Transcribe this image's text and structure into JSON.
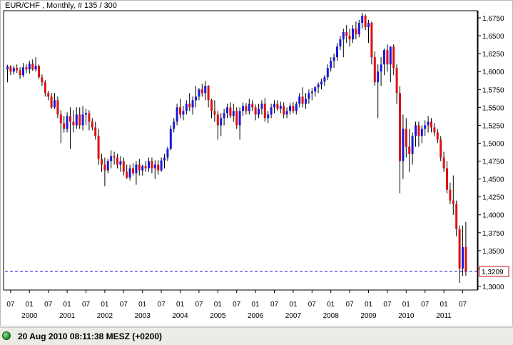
{
  "chart_data": {
    "type": "candlestick",
    "title": "EUR/CHF , Monthly, # 135 / 300",
    "y_range": [
      1.295,
      1.685
    ],
    "y_ticks": [
      "1,6750",
      "1,6500",
      "1,6250",
      "1,6000",
      "1,5750",
      "1,5500",
      "1,5250",
      "1,5000",
      "1,4750",
      "1,4500",
      "1,4250",
      "1,4000",
      "1,3750",
      "1,3500",
      "1,3250",
      "1,3000"
    ],
    "y_tick_values": [
      1.675,
      1.65,
      1.625,
      1.6,
      1.575,
      1.55,
      1.525,
      1.5,
      1.475,
      1.45,
      1.425,
      1.4,
      1.375,
      1.35,
      1.325,
      1.3
    ],
    "x_month_ticks": [
      "07",
      "01",
      "07",
      "01",
      "07",
      "01",
      "07",
      "01",
      "07",
      "01",
      "07",
      "01",
      "07",
      "01",
      "07",
      "01",
      "07",
      "01",
      "07",
      "01",
      "07",
      "01",
      "07",
      "01",
      "07"
    ],
    "x_year_labels": [
      "2000",
      "2001",
      "2002",
      "2003",
      "2004",
      "2005",
      "2006",
      "2007",
      "2008",
      "2009",
      "2010",
      "2011"
    ],
    "current_price_label": "1,3209",
    "current_price": 1.3209,
    "colors": {
      "up": "#1a1adb",
      "down": "#e01010",
      "wick": "#000000",
      "price_line": "#1a1acc",
      "price_box": "#d01010"
    },
    "series": [
      [
        1.603,
        1.6095,
        1.585,
        1.607
      ],
      [
        1.607,
        1.609,
        1.595,
        1.6
      ],
      [
        1.6,
        1.608,
        1.596,
        1.605
      ],
      [
        1.605,
        1.61,
        1.598,
        1.602
      ],
      [
        1.602,
        1.606,
        1.59,
        1.595
      ],
      [
        1.595,
        1.612,
        1.592,
        1.606
      ],
      [
        1.606,
        1.61,
        1.598,
        1.603
      ],
      [
        1.603,
        1.615,
        1.597,
        1.611
      ],
      [
        1.611,
        1.617,
        1.601,
        1.603
      ],
      [
        1.603,
        1.62,
        1.6,
        1.608
      ],
      [
        1.608,
        1.61,
        1.59,
        1.592
      ],
      [
        1.592,
        1.596,
        1.58,
        1.585
      ],
      [
        1.585,
        1.588,
        1.565,
        1.57
      ],
      [
        1.57,
        1.573,
        1.56,
        1.565
      ],
      [
        1.565,
        1.57,
        1.548,
        1.55
      ],
      [
        1.55,
        1.57,
        1.548,
        1.56
      ],
      [
        1.56,
        1.565,
        1.535,
        1.54
      ],
      [
        1.54,
        1.546,
        1.5,
        1.528
      ],
      [
        1.528,
        1.538,
        1.515,
        1.52
      ],
      [
        1.52,
        1.543,
        1.515,
        1.538
      ],
      [
        1.538,
        1.55,
        1.492,
        1.53
      ],
      [
        1.53,
        1.546,
        1.515,
        1.525
      ],
      [
        1.525,
        1.55,
        1.52,
        1.54
      ],
      [
        1.54,
        1.55,
        1.52,
        1.525
      ],
      [
        1.525,
        1.552,
        1.518,
        1.54
      ],
      [
        1.54,
        1.548,
        1.525,
        1.542
      ],
      [
        1.542,
        1.546,
        1.518,
        1.53
      ],
      [
        1.53,
        1.535,
        1.518,
        1.522
      ],
      [
        1.522,
        1.53,
        1.505,
        1.51
      ],
      [
        1.51,
        1.52,
        1.47,
        1.478
      ],
      [
        1.478,
        1.485,
        1.46,
        1.47
      ],
      [
        1.47,
        1.48,
        1.44,
        1.462
      ],
      [
        1.462,
        1.478,
        1.458,
        1.475
      ],
      [
        1.475,
        1.49,
        1.465,
        1.482
      ],
      [
        1.482,
        1.488,
        1.47,
        1.48
      ],
      [
        1.48,
        1.485,
        1.465,
        1.47
      ],
      [
        1.47,
        1.482,
        1.46,
        1.475
      ],
      [
        1.475,
        1.48,
        1.455,
        1.46
      ],
      [
        1.46,
        1.47,
        1.45,
        1.452
      ],
      [
        1.452,
        1.47,
        1.448,
        1.465
      ],
      [
        1.465,
        1.472,
        1.455,
        1.458
      ],
      [
        1.458,
        1.475,
        1.442,
        1.47
      ],
      [
        1.47,
        1.478,
        1.455,
        1.462
      ],
      [
        1.462,
        1.47,
        1.455,
        1.468
      ],
      [
        1.468,
        1.475,
        1.46,
        1.465
      ],
      [
        1.465,
        1.48,
        1.46,
        1.475
      ],
      [
        1.475,
        1.48,
        1.458,
        1.465
      ],
      [
        1.465,
        1.476,
        1.45,
        1.47
      ],
      [
        1.47,
        1.476,
        1.456,
        1.462
      ],
      [
        1.462,
        1.48,
        1.46,
        1.476
      ],
      [
        1.476,
        1.485,
        1.465,
        1.48
      ],
      [
        1.48,
        1.495,
        1.475,
        1.492
      ],
      [
        1.492,
        1.525,
        1.49,
        1.52
      ],
      [
        1.52,
        1.535,
        1.515,
        1.53
      ],
      [
        1.53,
        1.555,
        1.525,
        1.55
      ],
      [
        1.55,
        1.562,
        1.535,
        1.54
      ],
      [
        1.54,
        1.552,
        1.532,
        1.545
      ],
      [
        1.545,
        1.56,
        1.54,
        1.555
      ],
      [
        1.555,
        1.57,
        1.545,
        1.55
      ],
      [
        1.55,
        1.565,
        1.54,
        1.56
      ],
      [
        1.56,
        1.58,
        1.55,
        1.565
      ],
      [
        1.565,
        1.577,
        1.56,
        1.575
      ],
      [
        1.575,
        1.583,
        1.565,
        1.57
      ],
      [
        1.57,
        1.587,
        1.56,
        1.58
      ],
      [
        1.58,
        1.581,
        1.55,
        1.56
      ],
      [
        1.56,
        1.562,
        1.535,
        1.545
      ],
      [
        1.545,
        1.56,
        1.53,
        1.54
      ],
      [
        1.54,
        1.545,
        1.505,
        1.525
      ],
      [
        1.525,
        1.542,
        1.51,
        1.535
      ],
      [
        1.535,
        1.548,
        1.525,
        1.542
      ],
      [
        1.542,
        1.555,
        1.535,
        1.55
      ],
      [
        1.55,
        1.557,
        1.535,
        1.538
      ],
      [
        1.538,
        1.555,
        1.53,
        1.545
      ],
      [
        1.545,
        1.55,
        1.52,
        1.525
      ],
      [
        1.525,
        1.55,
        1.505,
        1.545
      ],
      [
        1.545,
        1.557,
        1.538,
        1.552
      ],
      [
        1.552,
        1.556,
        1.54,
        1.545
      ],
      [
        1.545,
        1.562,
        1.54,
        1.555
      ],
      [
        1.555,
        1.56,
        1.545,
        1.55
      ],
      [
        1.55,
        1.554,
        1.532,
        1.54
      ],
      [
        1.54,
        1.555,
        1.535,
        1.548
      ],
      [
        1.548,
        1.56,
        1.54,
        1.555
      ],
      [
        1.555,
        1.563,
        1.53,
        1.535
      ],
      [
        1.535,
        1.545,
        1.528,
        1.54
      ],
      [
        1.54,
        1.555,
        1.535,
        1.55
      ],
      [
        1.55,
        1.56,
        1.542,
        1.555
      ],
      [
        1.555,
        1.56,
        1.545,
        1.548
      ],
      [
        1.548,
        1.558,
        1.542,
        1.552
      ],
      [
        1.552,
        1.557,
        1.535,
        1.54
      ],
      [
        1.54,
        1.55,
        1.535,
        1.545
      ],
      [
        1.545,
        1.556,
        1.54,
        1.552
      ],
      [
        1.552,
        1.557,
        1.542,
        1.545
      ],
      [
        1.545,
        1.558,
        1.54,
        1.555
      ],
      [
        1.555,
        1.57,
        1.55,
        1.565
      ],
      [
        1.565,
        1.578,
        1.55,
        1.555
      ],
      [
        1.555,
        1.57,
        1.548,
        1.562
      ],
      [
        1.562,
        1.575,
        1.555,
        1.57
      ],
      [
        1.57,
        1.577,
        1.56,
        1.572
      ],
      [
        1.572,
        1.58,
        1.565,
        1.578
      ],
      [
        1.578,
        1.585,
        1.57,
        1.582
      ],
      [
        1.582,
        1.59,
        1.575,
        1.586
      ],
      [
        1.586,
        1.595,
        1.58,
        1.592
      ],
      [
        1.592,
        1.61,
        1.588,
        1.605
      ],
      [
        1.605,
        1.62,
        1.6,
        1.615
      ],
      [
        1.615,
        1.625,
        1.605,
        1.62
      ],
      [
        1.62,
        1.64,
        1.615,
        1.635
      ],
      [
        1.635,
        1.65,
        1.63,
        1.645
      ],
      [
        1.645,
        1.66,
        1.62,
        1.655
      ],
      [
        1.655,
        1.665,
        1.64,
        1.65
      ],
      [
        1.65,
        1.66,
        1.635,
        1.645
      ],
      [
        1.645,
        1.665,
        1.64,
        1.66
      ],
      [
        1.66,
        1.67,
        1.645,
        1.652
      ],
      [
        1.652,
        1.672,
        1.648,
        1.668
      ],
      [
        1.668,
        1.682,
        1.66,
        1.678
      ],
      [
        1.678,
        1.68,
        1.658,
        1.662
      ],
      [
        1.662,
        1.672,
        1.64,
        1.668
      ],
      [
        1.668,
        1.67,
        1.61,
        1.62
      ],
      [
        1.62,
        1.628,
        1.58,
        1.585
      ],
      [
        1.585,
        1.61,
        1.535,
        1.6
      ],
      [
        1.6,
        1.62,
        1.58,
        1.61
      ],
      [
        1.61,
        1.632,
        1.595,
        1.63
      ],
      [
        1.63,
        1.638,
        1.6,
        1.61
      ],
      [
        1.61,
        1.635,
        1.585,
        1.635
      ],
      [
        1.635,
        1.638,
        1.595,
        1.605
      ],
      [
        1.605,
        1.61,
        1.555,
        1.57
      ],
      [
        1.57,
        1.58,
        1.43,
        1.475
      ],
      [
        1.475,
        1.54,
        1.45,
        1.52
      ],
      [
        1.52,
        1.535,
        1.48,
        1.495
      ],
      [
        1.495,
        1.52,
        1.46,
        1.485
      ],
      [
        1.485,
        1.515,
        1.47,
        1.51
      ],
      [
        1.51,
        1.53,
        1.495,
        1.525
      ],
      [
        1.525,
        1.53,
        1.495,
        1.51
      ],
      [
        1.51,
        1.525,
        1.5,
        1.52
      ],
      [
        1.52,
        1.532,
        1.51,
        1.525
      ],
      [
        1.525,
        1.538,
        1.515,
        1.53
      ],
      [
        1.53,
        1.535,
        1.515,
        1.522
      ],
      [
        1.522,
        1.528,
        1.51,
        1.515
      ],
      [
        1.515,
        1.52,
        1.5,
        1.505
      ],
      [
        1.505,
        1.51,
        1.475,
        1.48
      ],
      [
        1.48,
        1.488,
        1.46,
        1.465
      ],
      [
        1.465,
        1.475,
        1.43,
        1.435
      ],
      [
        1.435,
        1.445,
        1.415,
        1.42
      ],
      [
        1.42,
        1.455,
        1.4,
        1.415
      ],
      [
        1.415,
        1.42,
        1.37,
        1.38
      ],
      [
        1.38,
        1.385,
        1.305,
        1.325
      ],
      [
        1.325,
        1.385,
        1.315,
        1.355
      ],
      [
        1.355,
        1.39,
        1.315,
        1.3209
      ]
    ]
  },
  "status": {
    "text": "20 Aug 2010 08:11:38  MESZ (+0200)"
  }
}
